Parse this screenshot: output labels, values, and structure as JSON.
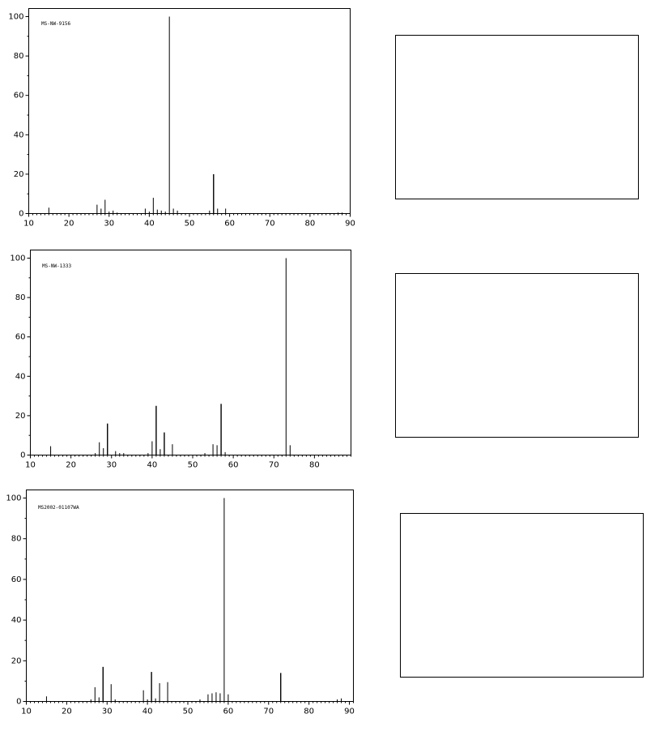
{
  "colors": {
    "axis": "#000000",
    "bar": "#000000",
    "background": "#ffffff"
  },
  "chart_data": [
    {
      "type": "bar",
      "label": "MS-NW-9156",
      "title": "",
      "xlabel": "",
      "ylabel": "",
      "xlim": [
        10,
        90
      ],
      "ylim": [
        0,
        100
      ],
      "x_ticks": [
        10,
        20,
        30,
        40,
        50,
        60,
        70,
        80,
        90
      ],
      "y_ticks": [
        0,
        20,
        40,
        60,
        80,
        100
      ],
      "grid": false,
      "peaks": [
        {
          "x": 15,
          "y": 3
        },
        {
          "x": 27,
          "y": 4.5
        },
        {
          "x": 28,
          "y": 2.5
        },
        {
          "x": 29,
          "y": 7
        },
        {
          "x": 30,
          "y": 1
        },
        {
          "x": 31,
          "y": 1.5
        },
        {
          "x": 32,
          "y": 0.5
        },
        {
          "x": 39,
          "y": 2.5
        },
        {
          "x": 40,
          "y": 1
        },
        {
          "x": 41,
          "y": 8
        },
        {
          "x": 42,
          "y": 2
        },
        {
          "x": 43,
          "y": 1.5
        },
        {
          "x": 44,
          "y": 1
        },
        {
          "x": 45,
          "y": 100
        },
        {
          "x": 46,
          "y": 2.5
        },
        {
          "x": 47,
          "y": 1.5
        },
        {
          "x": 55,
          "y": 1.5
        },
        {
          "x": 56,
          "y": 20
        },
        {
          "x": 57,
          "y": 2.5
        },
        {
          "x": 59,
          "y": 2.5
        },
        {
          "x": 87,
          "y": 0.5
        },
        {
          "x": 88,
          "y": 0.5
        }
      ]
    },
    {
      "type": "bar",
      "label": "MS-NW-1333",
      "title": "",
      "xlabel": "",
      "ylabel": "",
      "xlim": [
        10,
        89
      ],
      "ylim": [
        0,
        100
      ],
      "x_ticks": [
        10,
        20,
        30,
        40,
        50,
        60,
        70,
        80
      ],
      "y_ticks": [
        0,
        20,
        40,
        60,
        80,
        100
      ],
      "grid": false,
      "peaks": [
        {
          "x": 15,
          "y": 4.5
        },
        {
          "x": 26,
          "y": 1
        },
        {
          "x": 27,
          "y": 6.5
        },
        {
          "x": 28,
          "y": 3.5
        },
        {
          "x": 29,
          "y": 16
        },
        {
          "x": 31,
          "y": 2
        },
        {
          "x": 32,
          "y": 1
        },
        {
          "x": 33,
          "y": 1
        },
        {
          "x": 39,
          "y": 1
        },
        {
          "x": 40,
          "y": 7
        },
        {
          "x": 41,
          "y": 25
        },
        {
          "x": 42,
          "y": 3
        },
        {
          "x": 43,
          "y": 11.5
        },
        {
          "x": 45,
          "y": 5.5
        },
        {
          "x": 53,
          "y": 1
        },
        {
          "x": 55,
          "y": 5.5
        },
        {
          "x": 56,
          "y": 5
        },
        {
          "x": 57,
          "y": 26
        },
        {
          "x": 58,
          "y": 1.5
        },
        {
          "x": 73,
          "y": 100
        },
        {
          "x": 74,
          "y": 5
        }
      ]
    },
    {
      "type": "bar",
      "label": "MS2002-01107WA",
      "title": "",
      "xlabel": "",
      "ylabel": "",
      "xlim": [
        10,
        91
      ],
      "ylim": [
        0,
        100
      ],
      "x_ticks": [
        10,
        20,
        30,
        40,
        50,
        60,
        70,
        80,
        90
      ],
      "y_ticks": [
        0,
        20,
        40,
        60,
        80,
        100
      ],
      "grid": false,
      "peaks": [
        {
          "x": 15,
          "y": 2.5
        },
        {
          "x": 26,
          "y": 1
        },
        {
          "x": 27,
          "y": 7
        },
        {
          "x": 28,
          "y": 2
        },
        {
          "x": 29,
          "y": 17
        },
        {
          "x": 31,
          "y": 8.5
        },
        {
          "x": 32,
          "y": 1
        },
        {
          "x": 39,
          "y": 5.5
        },
        {
          "x": 40,
          "y": 1
        },
        {
          "x": 41,
          "y": 14.5
        },
        {
          "x": 42,
          "y": 1.5
        },
        {
          "x": 43,
          "y": 9
        },
        {
          "x": 45,
          "y": 9.5
        },
        {
          "x": 53,
          "y": 1
        },
        {
          "x": 55,
          "y": 3.5
        },
        {
          "x": 56,
          "y": 4
        },
        {
          "x": 57,
          "y": 4.5
        },
        {
          "x": 58,
          "y": 4
        },
        {
          "x": 59,
          "y": 100
        },
        {
          "x": 60,
          "y": 3.5
        },
        {
          "x": 73,
          "y": 14
        },
        {
          "x": 87,
          "y": 1
        },
        {
          "x": 88,
          "y": 1.5
        }
      ]
    }
  ]
}
